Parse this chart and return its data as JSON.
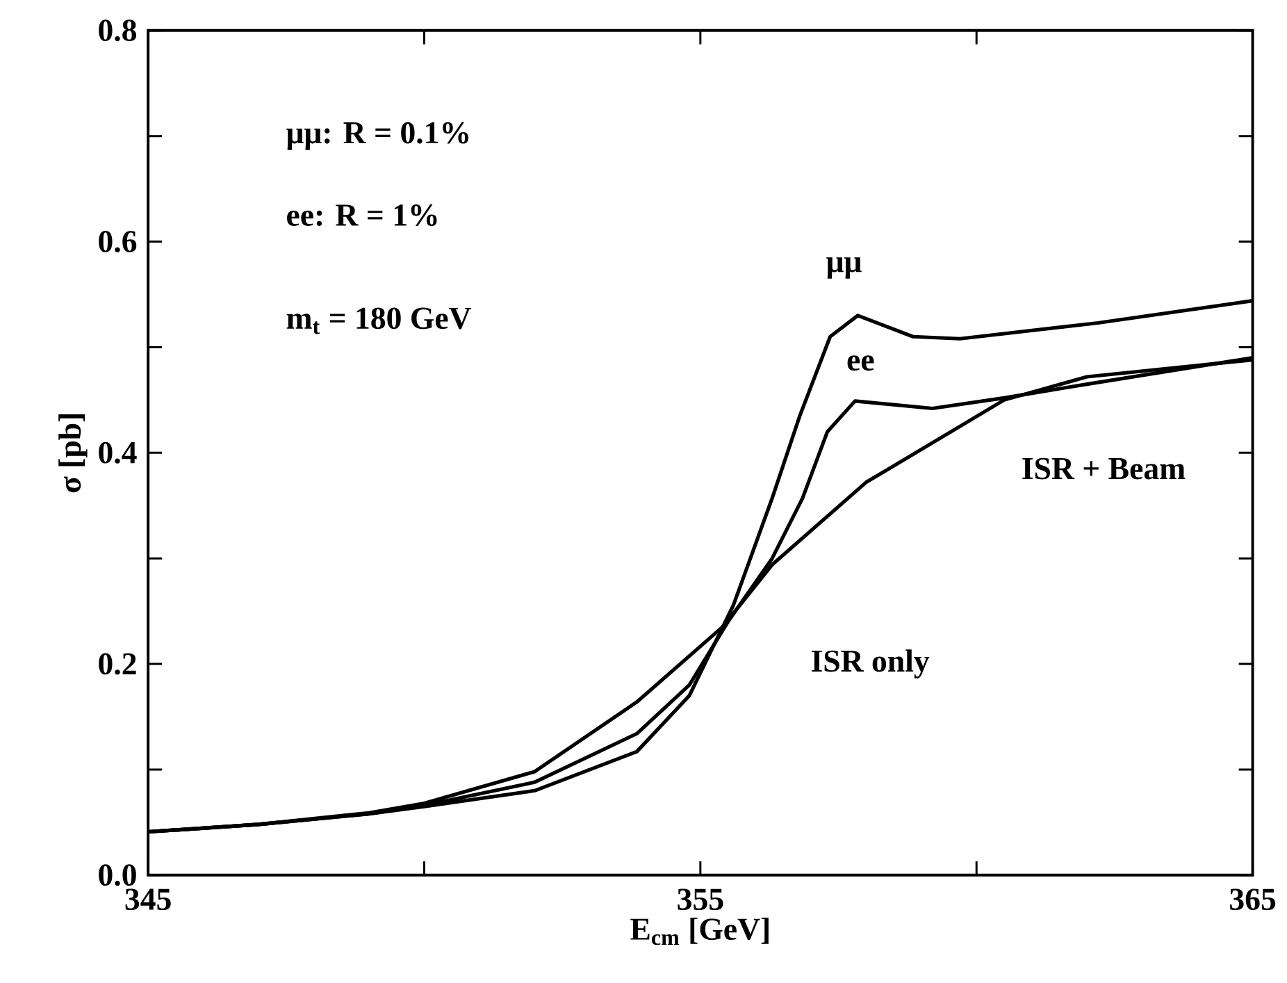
{
  "chart_data": {
    "type": "line",
    "xlabel": "E$_{cm}$ [GeV]",
    "ylabel": "σ [pb]",
    "series": [
      {
        "name": "μμ",
        "color": "#000000",
        "x": [
          345,
          347,
          349,
          350,
          352,
          353.85,
          354.8,
          355.6,
          356.3,
          356.8,
          357.35,
          357.85,
          358.85,
          359.7,
          362.2,
          365
        ],
        "values": [
          0.041,
          0.048,
          0.058,
          0.065,
          0.08,
          0.117,
          0.17,
          0.256,
          0.357,
          0.435,
          0.51,
          0.53,
          0.51,
          0.508,
          0.523,
          0.544
        ]
      },
      {
        "name": "ee",
        "color": "#000000",
        "x": [
          345,
          347,
          349,
          350,
          352,
          353.85,
          354.8,
          355.5,
          356.3,
          356.85,
          357.3,
          357.8,
          359.2,
          360.5,
          362,
          365
        ],
        "values": [
          0.041,
          0.048,
          0.058,
          0.066,
          0.088,
          0.134,
          0.18,
          0.24,
          0.3,
          0.357,
          0.42,
          0.449,
          0.442,
          0.452,
          0.465,
          0.49
        ]
      },
      {
        "name": "ISR + Beam",
        "color": "#000000",
        "x": [
          345,
          347,
          349,
          350,
          352,
          353.85,
          355.4,
          356.3,
          358,
          360.5,
          362,
          365
        ],
        "values": [
          0.041,
          0.048,
          0.059,
          0.068,
          0.098,
          0.164,
          0.235,
          0.294,
          0.372,
          0.45,
          0.472,
          0.488
        ]
      }
    ],
    "xlim": [
      345,
      365
    ],
    "ylim": [
      0,
      0.8
    ],
    "xticks": [
      345,
      {
        "value": 350,
        "label": null
      },
      355,
      {
        "value": 360,
        "label": null
      },
      365
    ],
    "yticks": [
      {
        "value": 0,
        "label": "0.0"
      },
      {
        "value": 0.1,
        "label": null
      },
      0.2,
      {
        "value": 0.3,
        "label": null
      },
      0.4,
      {
        "value": 0.5,
        "label": null
      },
      0.6,
      {
        "value": 0.7,
        "label": null
      },
      0.8
    ],
    "annotations": [
      "μμ: R = 0.1%",
      "ee:  R =  1%",
      "m$_{t}$ = 180 GeV",
      "ISR only"
    ],
    "grid": false,
    "line_style": "solid",
    "marker": "none"
  }
}
